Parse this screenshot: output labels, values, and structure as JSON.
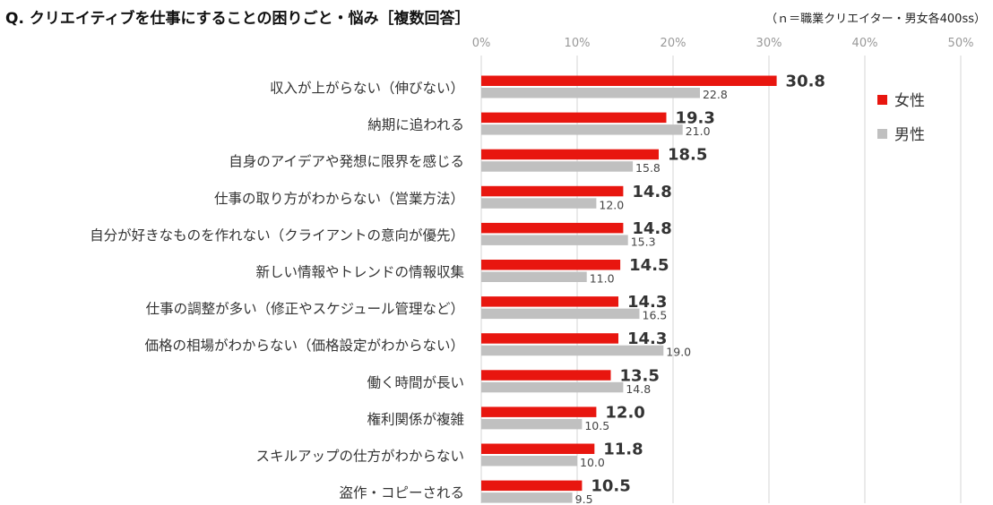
{
  "title": "Q. クリエイティブを仕事にすることの困りごと・悩み［複数回答］",
  "sample_note": "（ｎ＝職業クリエイター・男女各400ss）",
  "colors": {
    "female": "#e8160f",
    "male": "#c0c0c0",
    "grid": "#d4d4d4"
  },
  "chart_data": {
    "type": "bar",
    "orientation": "horizontal",
    "title": "Q. クリエイティブを仕事にすることの困りごと・悩み［複数回答］",
    "xlim": [
      0,
      50
    ],
    "ticks": [
      "0%",
      "10%",
      "20%",
      "30%",
      "40%",
      "50%"
    ],
    "tick_values": [
      0,
      10,
      20,
      30,
      40,
      50
    ],
    "legend_position": "top-right",
    "categories": [
      "収入が上がらない（伸びない）",
      "納期に追われる",
      "自身のアイデアや発想に限界を感じる",
      "仕事の取り方がわからない（営業方法）",
      "自分が好きなものを作れない（クライアントの意向が優先）",
      "新しい情報やトレンドの情報収集",
      "仕事の調整が多い（修正やスケジュール管理など）",
      "価格の相場がわからない（価格設定がわからない）",
      "働く時間が長い",
      "権利関係が複雑",
      "スキルアップの仕方がわからない",
      "盗作・コピーされる"
    ],
    "series": [
      {
        "name": "女性",
        "values": [
          30.8,
          19.3,
          18.5,
          14.8,
          14.8,
          14.5,
          14.3,
          14.3,
          13.5,
          12.0,
          11.8,
          10.5
        ]
      },
      {
        "name": "男性",
        "values": [
          22.8,
          21.0,
          15.8,
          12.0,
          15.3,
          11.0,
          16.5,
          19.0,
          14.8,
          10.5,
          10.0,
          9.5
        ]
      }
    ]
  }
}
